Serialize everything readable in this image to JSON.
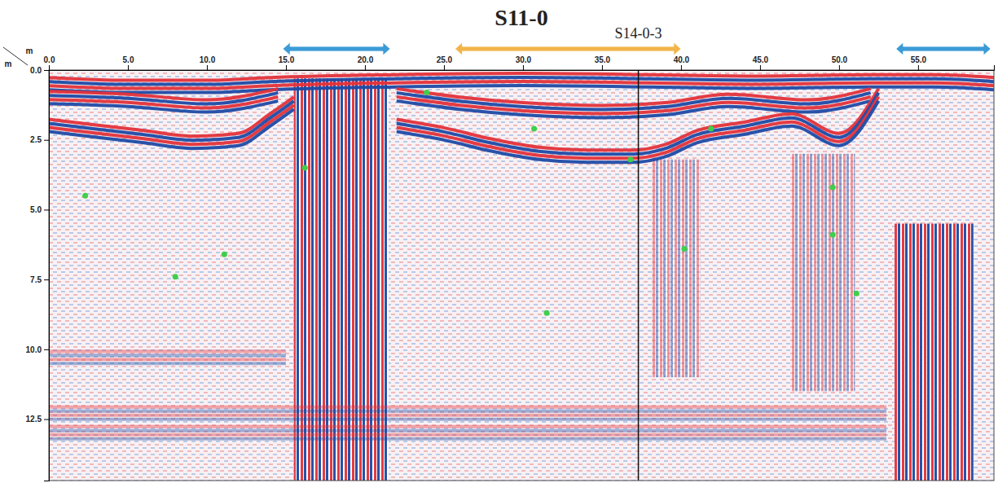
{
  "chart_data": {
    "type": "radargram",
    "title": "S11-0",
    "xlabel": "m",
    "ylabel": "m",
    "xlim": [
      0,
      59.8
    ],
    "xticks": [
      {
        "value": 0,
        "label": "0.0"
      },
      {
        "value": 5,
        "label": "5.0"
      },
      {
        "value": 10,
        "label": "10.0"
      },
      {
        "value": 15,
        "label": "15.0"
      },
      {
        "value": 20,
        "label": "20.0"
      },
      {
        "value": 25,
        "label": "25.0"
      },
      {
        "value": 30,
        "label": "30.0"
      },
      {
        "value": 35,
        "label": "35.0"
      },
      {
        "value": 40,
        "label": "40.0"
      },
      {
        "value": 45,
        "label": "45.0"
      },
      {
        "value": 50,
        "label": "50.0"
      },
      {
        "value": 55,
        "label": "55.0"
      }
    ],
    "ylim": [
      0,
      14.7
    ],
    "yticks": [
      {
        "value": 0,
        "label": "0.0"
      },
      2.5,
      {
        "value": 5,
        "label": "5.0"
      },
      7.5,
      {
        "value": 10,
        "label": "10.0"
      },
      12.5
    ],
    "reflectors": [
      {
        "x": [
          0,
          5,
          10,
          14,
          22,
          30,
          38,
          45,
          52,
          56,
          59.8
        ],
        "y": [
          0.5,
          0.6,
          0.6,
          0.5,
          0.4,
          0.35,
          0.4,
          0.45,
          0.4,
          0.4,
          0.5
        ],
        "line_style": "solid"
      },
      {
        "x": [
          0,
          5,
          10,
          14.5
        ],
        "y": [
          1.0,
          1.1,
          1.3,
          0.9
        ],
        "line_style": "solid"
      },
      {
        "x": [
          22,
          26,
          30,
          35,
          39,
          43,
          48,
          52
        ],
        "y": [
          0.9,
          1.2,
          1.4,
          1.5,
          1.4,
          1.1,
          1.3,
          0.9
        ],
        "line_style": "solid"
      },
      {
        "x": [
          0,
          3,
          6,
          9,
          12,
          14,
          15.5
        ],
        "y": [
          2.0,
          2.2,
          2.4,
          2.6,
          2.5,
          1.8,
          1.2
        ],
        "line_style": "solid"
      },
      {
        "x": [
          22,
          25,
          28,
          31,
          34,
          37,
          39,
          41,
          44,
          47,
          50,
          52.5
        ],
        "y": [
          2.0,
          2.3,
          2.7,
          3.0,
          3.1,
          3.1,
          2.9,
          2.4,
          2.1,
          1.8,
          2.5,
          0.9
        ],
        "line_style": "solid"
      },
      {
        "x": [
          0,
          15
        ],
        "y": [
          10.3,
          10.3
        ],
        "line_style": "faint"
      },
      {
        "x": [
          0,
          53
        ],
        "y": [
          12.3,
          12.3
        ],
        "line_style": "faint"
      },
      {
        "x": [
          0,
          53
        ],
        "y": [
          13.0,
          13.0
        ],
        "line_style": "faint"
      }
    ],
    "anomalies": [
      {
        "from": 15.5,
        "to": 21.5,
        "top": 0.3,
        "bottom": 14.7,
        "line_style": "solid"
      },
      {
        "from": 53.5,
        "to": 58.5,
        "top": 5.5,
        "bottom": 14.7,
        "line_style": "solid"
      },
      {
        "from": 38.2,
        "to": 41.2,
        "top": 3.2,
        "bottom": 11.0,
        "line_style": "faint"
      },
      {
        "from": 47.0,
        "to": 51.0,
        "top": 3.0,
        "bottom": 11.5,
        "line_style": "faint"
      }
    ],
    "points": {
      "x": [
        2.3,
        8.0,
        11.1,
        16.2,
        23.9,
        30.7,
        31.5,
        36.8,
        40.2,
        41.9,
        49.6,
        49.6,
        51.1
      ],
      "y": [
        4.5,
        7.4,
        6.6,
        3.5,
        0.8,
        2.1,
        8.7,
        3.2,
        6.4,
        2.1,
        4.2,
        5.9,
        8.0
      ],
      "color": "#3fcf4a"
    },
    "markers": [
      {
        "x": 37.3,
        "label": "S14-0-3"
      }
    ],
    "ranges": [
      {
        "from": 14.8,
        "to": 21.6,
        "color": "#3b9bd6"
      },
      {
        "from": 25.7,
        "to": 40.0,
        "color": "#f2b54a"
      },
      {
        "from": 53.6,
        "to": 59.6,
        "color": "#3b9bd6"
      }
    ]
  }
}
